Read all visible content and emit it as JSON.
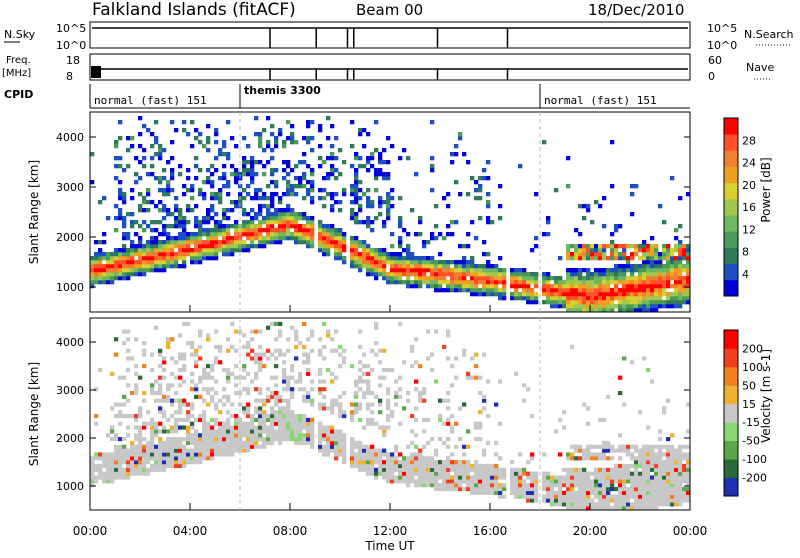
{
  "header": {
    "station": "Falkland Islands (fitACF)",
    "beam": "Beam 00",
    "date": "18/Dec/2010"
  },
  "panels": {
    "nsky": {
      "label": "N.Sky",
      "ticks": [
        "10^5",
        "10^0"
      ],
      "right_label": "N.Search",
      "right_ticks": [
        "10^5",
        "10^0"
      ]
    },
    "freq": {
      "label_line1": "Freq.",
      "label_line2": "[MHz]",
      "ticks": [
        "18",
        "8"
      ],
      "right_label": "Nave",
      "right_ticks": [
        "60",
        "0"
      ]
    },
    "cpid": {
      "label": "CPID",
      "segments": [
        "normal (fast) 151",
        "themis 3300",
        "normal (fast) 151"
      ]
    }
  },
  "chart_data": [
    {
      "type": "heatmap",
      "title": "",
      "ylabel": "Slant Range [km]",
      "xlabel": "",
      "colorbar_label": "Power [dB]",
      "colorbar_ticks": [
        "28",
        "24",
        "20",
        "16",
        "12",
        "8",
        "4"
      ],
      "colors": [
        "#0000dd",
        "#1c4fc0",
        "#2f7a58",
        "#4a9a5a",
        "#6fb860",
        "#a0c850",
        "#d8d030",
        "#f0a020",
        "#f08030",
        "#ff5028",
        "#ff0000"
      ],
      "x_ticks": [
        "00:00",
        "04:00",
        "08:00",
        "12:00",
        "16:00",
        "20:00",
        "00:00"
      ],
      "y_ticks": [
        "4000",
        "3000",
        "2000",
        "1000"
      ],
      "ylim": [
        500,
        4500
      ],
      "xlim_hours": [
        0,
        24
      ]
    },
    {
      "type": "heatmap",
      "title": "",
      "ylabel": "Slant Range [km]",
      "xlabel": "Time UT",
      "colorbar_label": "Velocity [m s-1]",
      "colorbar_ticks": [
        "200",
        "100",
        "50",
        "15",
        "-15",
        "-50",
        "-100",
        "-200"
      ],
      "colors": [
        "#1f2fb0",
        "#2a6a3a",
        "#5aa84a",
        "#88d870",
        "#c8c8c8",
        "#f0b030",
        "#f08020",
        "#f04020",
        "#ff0000"
      ],
      "x_ticks": [
        "00:00",
        "04:00",
        "08:00",
        "12:00",
        "16:00",
        "20:00",
        "00:00"
      ],
      "y_ticks": [
        "4000",
        "3000",
        "2000",
        "1000"
      ],
      "ylim": [
        500,
        4500
      ],
      "xlim_hours": [
        0,
        24
      ]
    }
  ]
}
